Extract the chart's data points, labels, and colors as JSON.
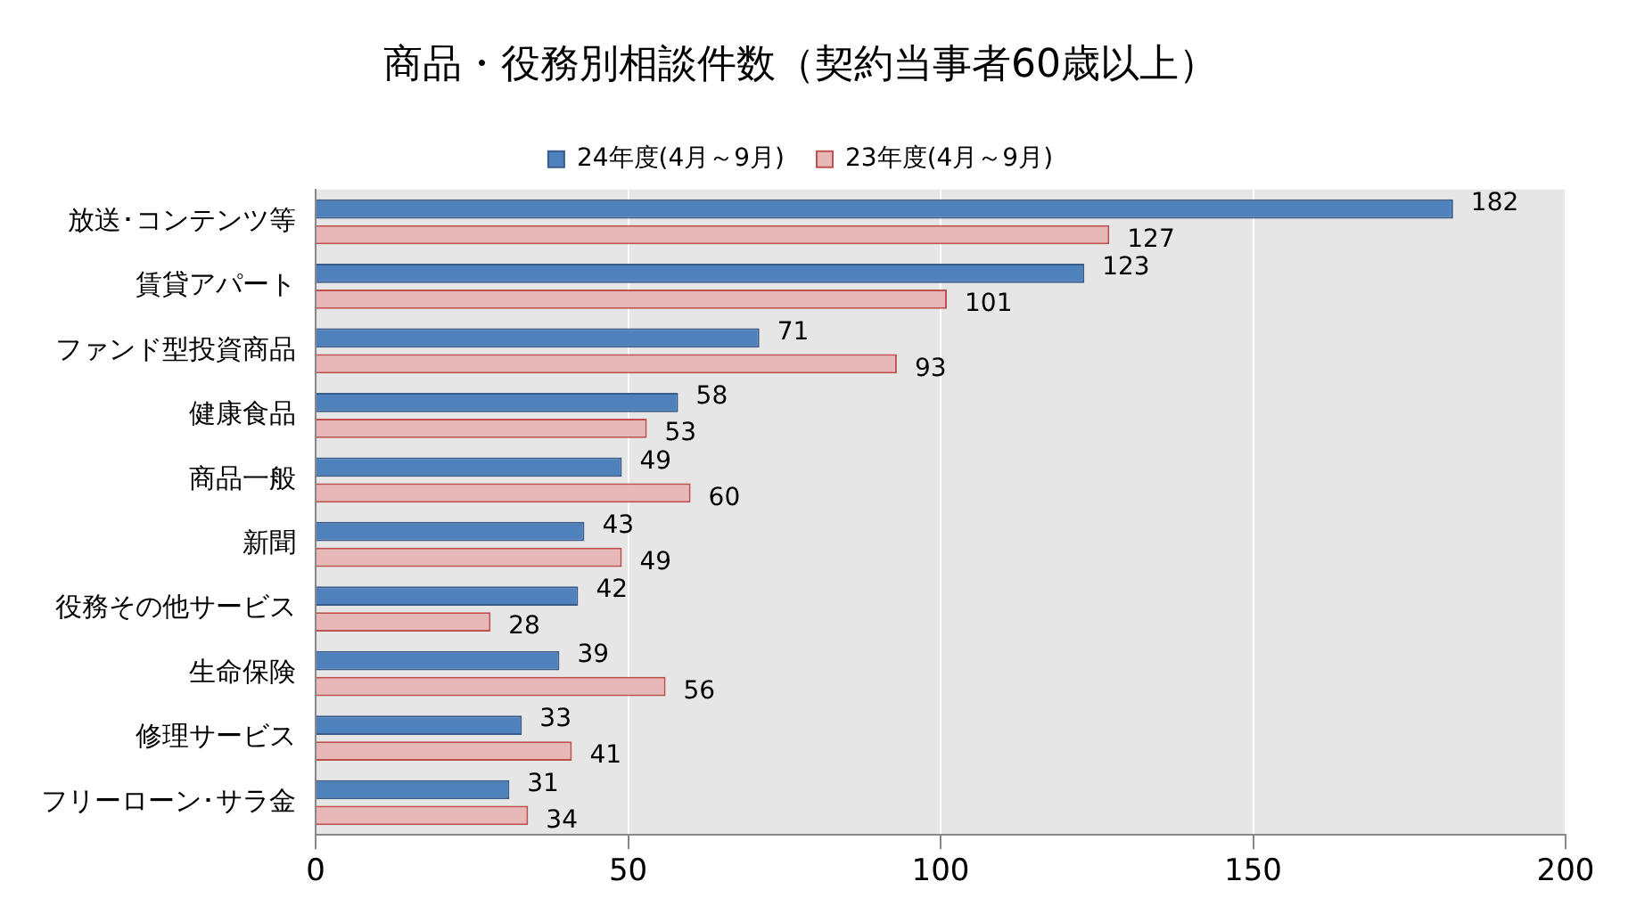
{
  "chart_data": {
    "type": "bar",
    "orientation": "horizontal",
    "title": "商品・役務別相談件数（契約当事者60歳以上）",
    "categories": [
      "放送･コンテンツ等",
      "賃貸アパート",
      "ファンド型投資商品",
      "健康食品",
      "商品一般",
      "新聞",
      "役務その他サービス",
      "生命保険",
      "修理サービス",
      "フリーローン･サラ金"
    ],
    "series": [
      {
        "name": "24年度(4月～9月)",
        "color": "#4f81bd",
        "values": [
          182,
          123,
          71,
          58,
          49,
          43,
          42,
          39,
          33,
          31
        ]
      },
      {
        "name": "23年度(4月～9月)",
        "color": "#e6b9b8",
        "values": [
          127,
          101,
          93,
          53,
          60,
          49,
          28,
          56,
          41,
          34
        ]
      }
    ],
    "xlim": [
      0,
      200
    ],
    "xticks": [
      0,
      50,
      100,
      150,
      200
    ],
    "grid": "x",
    "legend": "top",
    "data_labels": true
  }
}
